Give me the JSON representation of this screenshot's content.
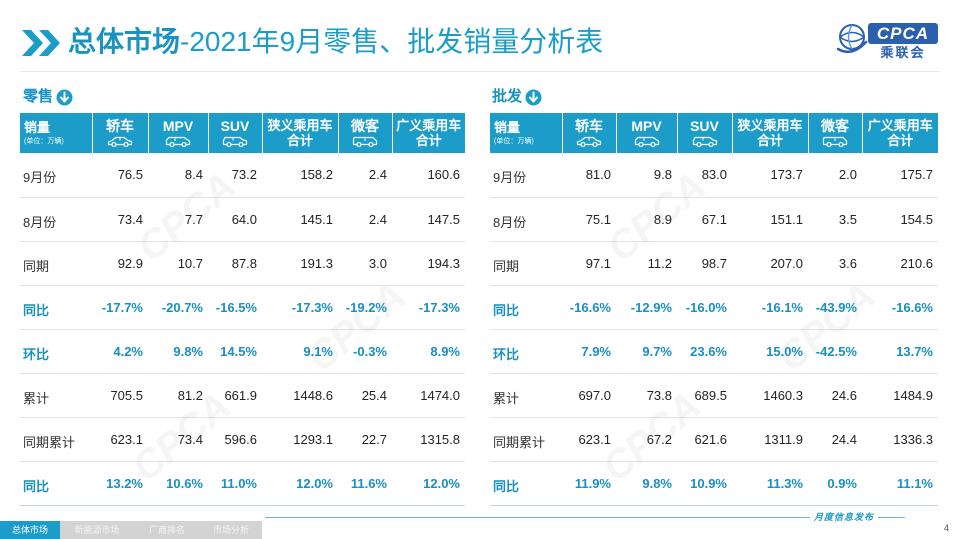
{
  "title": {
    "bold": "总体市场",
    "rest": "-2021年9月零售、批发销量分析表"
  },
  "logo": {
    "abbr": "CPCA",
    "name": "乘联会"
  },
  "icons": {
    "title": "double-chevron-right-icon",
    "section": "circle-arrow-down-icon",
    "logo": "cpca-globe-icon"
  },
  "colors": {
    "accent": "#1c9dc9",
    "emphasis": "#1a8fc0",
    "logo": "#2b60ae",
    "nav_inactive": "#d3d3d3"
  },
  "watermark": "CPCA",
  "header": {
    "unit_label": "销量",
    "unit_note": "(单位：万辆)",
    "columns": [
      {
        "line1": "轿车",
        "icon": "sedan-icon"
      },
      {
        "line1": "MPV",
        "icon": "mpv-icon"
      },
      {
        "line1": "SUV",
        "icon": "suv-icon"
      },
      {
        "line1": "狭义乘用车",
        "line2": "合计"
      },
      {
        "line1": "微客",
        "icon": "minivan-icon"
      },
      {
        "line1": "广义乘用车",
        "line2": "合计"
      }
    ]
  },
  "retail": {
    "label": "零售",
    "rows": [
      {
        "label": "9月份",
        "bold": false,
        "values": [
          "76.5",
          "8.4",
          "73.2",
          "158.2",
          "2.4",
          "160.6"
        ]
      },
      {
        "label": "8月份",
        "bold": false,
        "values": [
          "73.4",
          "7.7",
          "64.0",
          "145.1",
          "2.4",
          "147.5"
        ]
      },
      {
        "label": "同期",
        "bold": false,
        "values": [
          "92.9",
          "10.7",
          "87.8",
          "191.3",
          "3.0",
          "194.3"
        ]
      },
      {
        "label": "同比",
        "bold": true,
        "values": [
          "-17.7%",
          "-20.7%",
          "-16.5%",
          "-17.3%",
          "-19.2%",
          "-17.3%"
        ]
      },
      {
        "label": "环比",
        "bold": true,
        "values": [
          "4.2%",
          "9.8%",
          "14.5%",
          "9.1%",
          "-0.3%",
          "8.9%"
        ]
      },
      {
        "label": "累计",
        "bold": false,
        "values": [
          "705.5",
          "81.2",
          "661.9",
          "1448.6",
          "25.4",
          "1474.0"
        ]
      },
      {
        "label": "同期累计",
        "bold": false,
        "values": [
          "623.1",
          "73.4",
          "596.6",
          "1293.1",
          "22.7",
          "1315.8"
        ]
      },
      {
        "label": "同比",
        "bold": true,
        "values": [
          "13.2%",
          "10.6%",
          "11.0%",
          "12.0%",
          "11.6%",
          "12.0%"
        ]
      }
    ]
  },
  "wholesale": {
    "label": "批发",
    "rows": [
      {
        "label": "9月份",
        "bold": false,
        "values": [
          "81.0",
          "9.8",
          "83.0",
          "173.7",
          "2.0",
          "175.7"
        ]
      },
      {
        "label": "8月份",
        "bold": false,
        "values": [
          "75.1",
          "8.9",
          "67.1",
          "151.1",
          "3.5",
          "154.5"
        ]
      },
      {
        "label": "同期",
        "bold": false,
        "values": [
          "97.1",
          "11.2",
          "98.7",
          "207.0",
          "3.6",
          "210.6"
        ]
      },
      {
        "label": "同比",
        "bold": true,
        "values": [
          "-16.6%",
          "-12.9%",
          "-16.0%",
          "-16.1%",
          "-43.9%",
          "-16.6%"
        ]
      },
      {
        "label": "环比",
        "bold": true,
        "values": [
          "7.9%",
          "9.7%",
          "23.6%",
          "15.0%",
          "-42.5%",
          "13.7%"
        ]
      },
      {
        "label": "累计",
        "bold": false,
        "values": [
          "697.0",
          "73.8",
          "689.5",
          "1460.3",
          "24.6",
          "1484.9"
        ]
      },
      {
        "label": "同期累计",
        "bold": false,
        "values": [
          "623.1",
          "67.2",
          "621.6",
          "1311.9",
          "24.4",
          "1336.3"
        ]
      },
      {
        "label": "同比",
        "bold": true,
        "values": [
          "11.9%",
          "9.8%",
          "10.9%",
          "11.3%",
          "0.9%",
          "11.1%"
        ]
      }
    ]
  },
  "footer": {
    "nav": [
      {
        "label": "总体市场",
        "active": true
      },
      {
        "label": "新能源市场",
        "active": false
      },
      {
        "label": "厂商排名",
        "active": false
      },
      {
        "label": "市场分析",
        "active": false
      }
    ],
    "tag": "月度信息发布",
    "page": "4"
  }
}
